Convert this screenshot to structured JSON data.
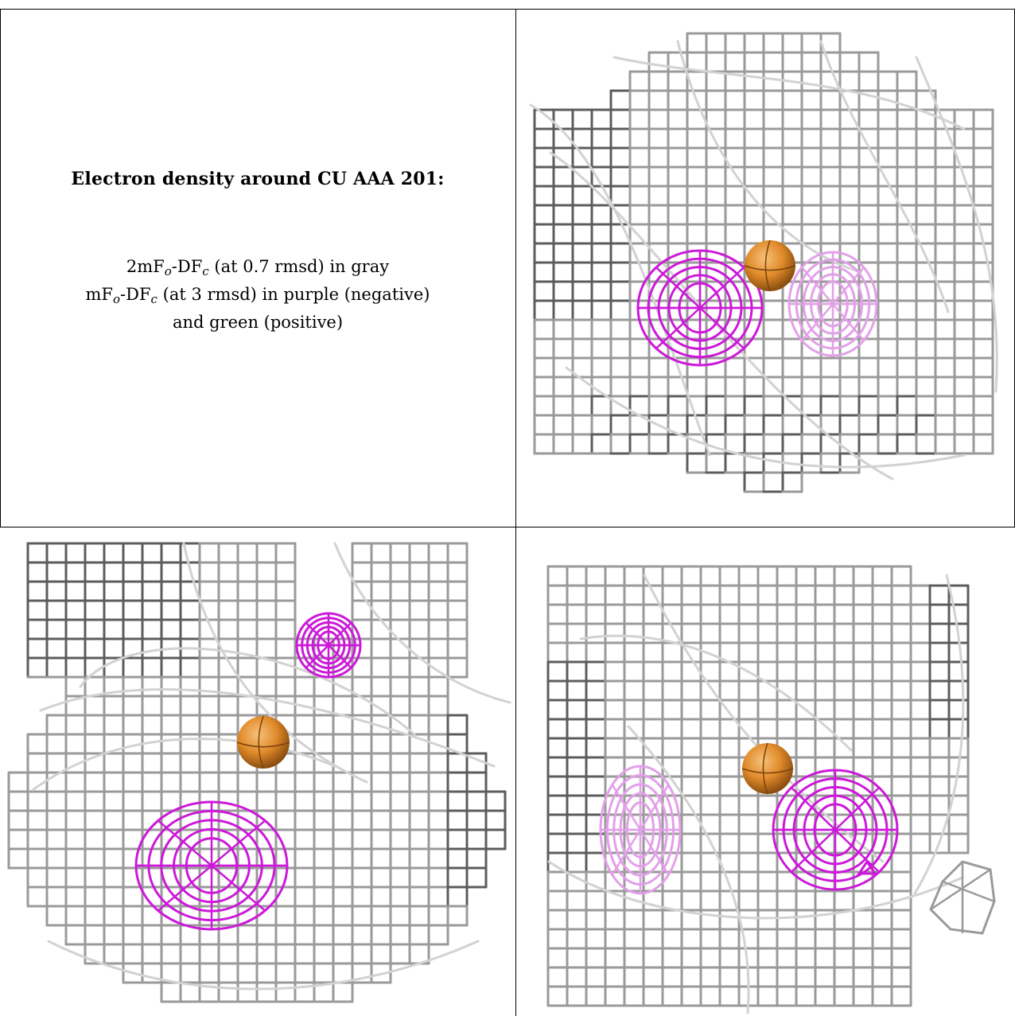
{
  "caption": {
    "title": "Electron density around CU AAA 201:",
    "map1": {
      "prefix": "2mF",
      "sub1": "o",
      "mid": "-DF",
      "sub2": "c",
      "suffix": " (at 0.7 rmsd) in gray"
    },
    "map2": {
      "prefix": "mF",
      "sub1": "o",
      "mid": "-DF",
      "sub2": "c",
      "suffix": " (at 3 rmsd) in purple (negative)"
    },
    "map3": "and green (positive)"
  },
  "colors": {
    "mesh_gray": "#9a9a9a",
    "mesh_dark": "#5c5c5c",
    "mesh_light": "#d2d2d2",
    "negative_purple": "#cc19d9",
    "negative_purple_faint": "#e2a0e8",
    "copper_atom": "#e08a2a"
  },
  "panels": [
    {
      "id": "view-top-right",
      "atom": "CU"
    },
    {
      "id": "view-bottom-left",
      "atom": "CU"
    },
    {
      "id": "view-bottom-right",
      "atom": "CU"
    }
  ]
}
